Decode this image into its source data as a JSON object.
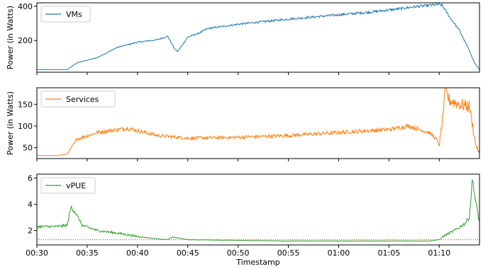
{
  "chart_data": {
    "type": "line",
    "xlabel": "Timestamp",
    "x_range": [
      "00:30",
      "01:14"
    ],
    "x_ticks": [
      "00:30",
      "00:35",
      "00:40",
      "00:45",
      "00:50",
      "00:55",
      "01:00",
      "01:05",
      "01:10"
    ],
    "grid": false,
    "shared_x": true,
    "panels": [
      {
        "id": "vms",
        "ylabel": "Power (in Watts)",
        "ylim": [
          15,
          420
        ],
        "yticks": [
          200,
          400
        ],
        "legend_position": "top-left",
        "series": [
          {
            "name": "VMs",
            "color": "#1f77b4",
            "x": [
              "00:30",
              "00:33",
              "00:33.5",
              "00:34",
              "00:36",
              "00:38",
              "00:40",
              "00:42",
              "00:43",
              "00:43.7",
              "00:44",
              "00:45",
              "00:46",
              "00:47",
              "00:50",
              "00:55",
              "01:00",
              "01:03",
              "01:06",
              "01:08",
              "01:10",
              "01:10.3",
              "01:11",
              "01:12",
              "01:13",
              "01:13.5",
              "01:14"
            ],
            "values": [
              30,
              30,
              50,
              70,
              100,
              160,
              190,
              205,
              225,
              150,
              135,
              220,
              240,
              270,
              295,
              325,
              350,
              365,
              385,
              400,
              410,
              405,
              340,
              260,
              140,
              70,
              30
            ]
          }
        ]
      },
      {
        "id": "services",
        "ylabel": "Power (in Watts)",
        "ylim": [
          25,
          188
        ],
        "yticks": [
          50,
          100,
          150
        ],
        "legend_position": "top-left",
        "series": [
          {
            "name": "Services",
            "color": "#ff7f0e",
            "x": [
              "00:30",
              "00:32",
              "00:33",
              "00:34",
              "00:36",
              "00:39",
              "00:42",
              "00:45",
              "00:50",
              "00:55",
              "01:00",
              "01:05",
              "01:07",
              "01:09",
              "01:09.7",
              "01:10",
              "01:10.3",
              "01:10.6",
              "01:11",
              "01:12",
              "01:13",
              "01:13.6",
              "01:14"
            ],
            "values": [
              32,
              32,
              35,
              70,
              85,
              95,
              78,
              72,
              74,
              78,
              85,
              92,
              100,
              85,
              70,
              55,
              110,
              180,
              160,
              150,
              145,
              60,
              35
            ]
          }
        ]
      },
      {
        "id": "vpue",
        "ylabel": "",
        "ylim": [
          0.9,
          6.3
        ],
        "yticks": [
          2,
          4,
          6
        ],
        "legend_position": "top-left",
        "reference_line": {
          "y": 1.3,
          "color": "#d62728",
          "style": "dotted"
        },
        "series": [
          {
            "name": "vPUE",
            "color": "#2ca02c",
            "x": [
              "00:30",
              "00:32",
              "00:33",
              "00:33.4",
              "00:33.8",
              "00:34.5",
              "00:36",
              "00:38",
              "00:40",
              "00:41.5",
              "00:43",
              "00:43.5",
              "00:45",
              "00:50",
              "00:55",
              "01:00",
              "01:05",
              "01:09",
              "01:10",
              "01:10.5",
              "01:11.5",
              "01:12.5",
              "01:13",
              "01:13.3",
              "01:13.6",
              "01:14"
            ],
            "values": [
              2.3,
              2.3,
              2.4,
              3.8,
              3.4,
              2.4,
              2.0,
              1.8,
              1.55,
              1.4,
              1.3,
              1.5,
              1.3,
              1.25,
              1.2,
              1.2,
              1.2,
              1.2,
              1.3,
              1.6,
              2.0,
              2.5,
              3.0,
              6.0,
              4.3,
              2.6
            ]
          }
        ]
      }
    ]
  }
}
